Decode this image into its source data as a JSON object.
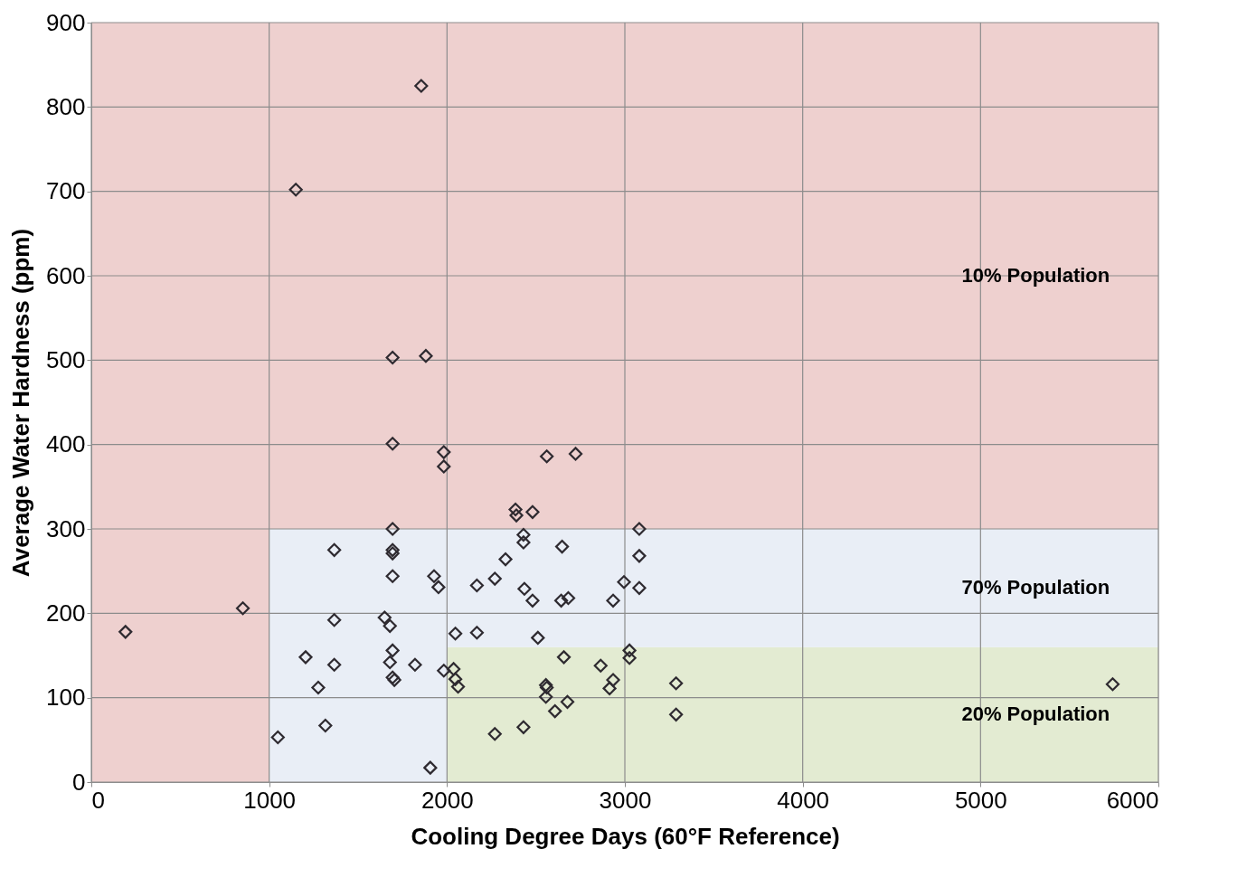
{
  "chart_data": {
    "type": "scatter",
    "xlabel": "Cooling Degree Days (60°F Reference)",
    "ylabel": "Average Water Hardness  (ppm)",
    "xlim": [
      0,
      6000
    ],
    "xticks": [
      0,
      1000,
      2000,
      3000,
      4000,
      5000,
      6000
    ],
    "ylim": [
      0,
      900
    ],
    "yticks": [
      0,
      100,
      200,
      300,
      400,
      500,
      600,
      700,
      800,
      900
    ],
    "grid": true,
    "marker": "diamond",
    "bands": [
      {
        "axis": "y",
        "from": 0,
        "to": 160,
        "label": "20% Population",
        "color": "#e3ebd2"
      },
      {
        "axis": "x",
        "from": 1000,
        "to": 2000,
        "color": "#e9eef6"
      },
      {
        "axis": "y",
        "from": 160,
        "to": 300,
        "label": "70% Population",
        "color": "#e9eef6"
      },
      {
        "axis": "y",
        "from": 300,
        "to": 900,
        "label": "10% Population",
        "color": "#eed0cf"
      },
      {
        "axis": "x",
        "from": 0,
        "to": 1000,
        "color": "#eed0cf"
      }
    ],
    "series": [
      {
        "color": "#2e2a30",
        "x": [
          192,
          852,
          1150,
          1855,
          1694,
          1881,
          1694,
          1982,
          1982,
          1694,
          2385,
          2390,
          2481,
          2561,
          2723,
          3081,
          1366,
          1694,
          1694,
          1694,
          1366,
          1649,
          1679,
          1694,
          1679,
          1694,
          1704,
          1205,
          1276,
          1366,
          1820,
          1982,
          1049,
          1316,
          1906,
          1927,
          1952,
          2047,
          2168,
          2168,
          2269,
          2329,
          2430,
          2430,
          2435,
          2481,
          2511,
          2647,
          2642,
          2682,
          2995,
          2934,
          3081,
          3081,
          3026,
          3026,
          2037,
          2047,
          2062,
          2269,
          2430,
          2556,
          2561,
          2556,
          2607,
          2677,
          2657,
          2864,
          2934,
          2914,
          3288,
          3288,
          5743
        ],
        "values": [
          178,
          206,
          702,
          825,
          503,
          505,
          401,
          391,
          374,
          300,
          323,
          316,
          320,
          386,
          389,
          300,
          275,
          275,
          271,
          244,
          192,
          195,
          185,
          156,
          142,
          124,
          121,
          148,
          112,
          139,
          139,
          132,
          53,
          67,
          17,
          244,
          231,
          176,
          233,
          177,
          241,
          264,
          293,
          284,
          229,
          215,
          171,
          279,
          215,
          218,
          237,
          215,
          268,
          230,
          156,
          147,
          134,
          122,
          113,
          57,
          65,
          115,
          112,
          101,
          84,
          95,
          148,
          138,
          121,
          111,
          117,
          80,
          116
        ]
      }
    ]
  }
}
